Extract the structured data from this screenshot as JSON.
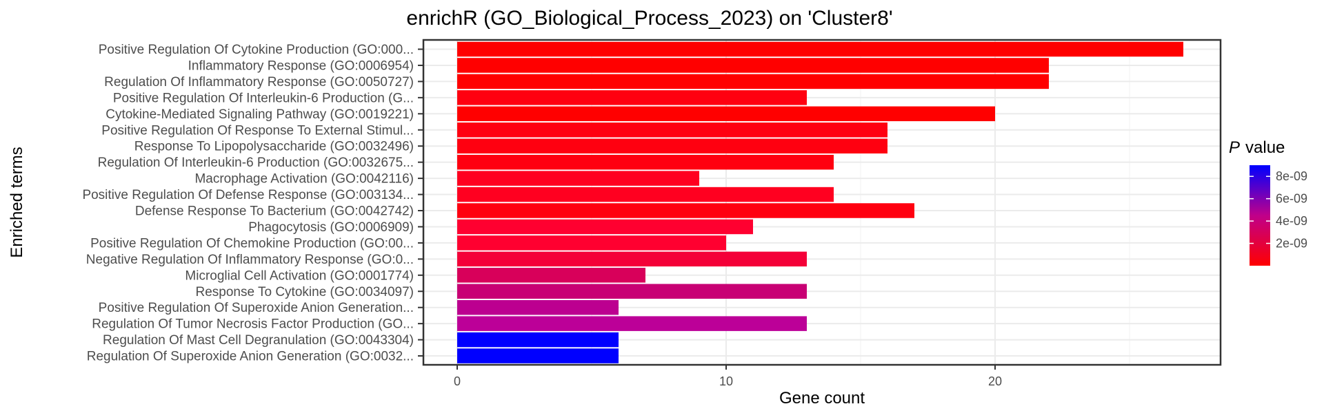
{
  "chart_data": {
    "type": "bar",
    "orientation": "horizontal",
    "title": "enrichR (GO_Biological_Process_2023) on 'Cluster8'",
    "xlabel": "Gene count",
    "ylabel": "Enriched terms",
    "xlim": [
      0,
      28
    ],
    "x_ticks": [
      0,
      10,
      20
    ],
    "grid": true,
    "legend": {
      "title_italic": "P",
      "title_rest": "value",
      "placement": "right",
      "ticks": [
        "8e-09",
        "6e-09",
        "4e-09",
        "2e-09"
      ],
      "tick_values": [
        8e-09,
        6e-09,
        4e-09,
        2e-09
      ],
      "range": [
        0,
        9e-09
      ],
      "color_low": "#FF0000",
      "color_high": "#0000FF"
    },
    "categories": [
      "Positive Regulation Of Cytokine Production (GO:000...",
      "Inflammatory Response (GO:0006954)",
      "Regulation Of Inflammatory Response (GO:0050727)",
      "Positive Regulation Of Interleukin-6 Production (G...",
      "Cytokine-Mediated Signaling Pathway (GO:0019221)",
      "Positive Regulation Of Response To External Stimul...",
      "Response To Lipopolysaccharide (GO:0032496)",
      "Regulation Of Interleukin-6 Production (GO:0032675...",
      "Macrophage Activation (GO:0042116)",
      "Positive Regulation Of Defense Response (GO:003134...",
      "Defense Response To Bacterium (GO:0042742)",
      "Phagocytosis (GO:0006909)",
      "Positive Regulation Of Chemokine Production (GO:00...",
      "Negative Regulation Of Inflammatory Response (GO:0...",
      "Microglial Cell Activation (GO:0001774)",
      "Response To Cytokine (GO:0034097)",
      "Positive Regulation Of Superoxide Anion Generation...",
      "Regulation Of Tumor Necrosis Factor Production (GO...",
      "Regulation Of Mast Cell Degranulation (GO:0043304)",
      "Regulation Of Superoxide Anion Generation (GO:0032..."
    ],
    "values": [
      27,
      22,
      22,
      13,
      20,
      16,
      16,
      14,
      9,
      14,
      17,
      11,
      10,
      13,
      7,
      13,
      6,
      13,
      6,
      6
    ],
    "colors": [
      "#FF0000",
      "#FF0000",
      "#FF0000",
      "#FF0010",
      "#FF0000",
      "#FF0010",
      "#FF0010",
      "#FF0010",
      "#FF0020",
      "#FF0020",
      "#FF0010",
      "#FF0030",
      "#FF0030",
      "#F40038",
      "#D8005A",
      "#C80074",
      "#BC0090",
      "#BC0098",
      "#0000FF",
      "#0000FF"
    ]
  }
}
